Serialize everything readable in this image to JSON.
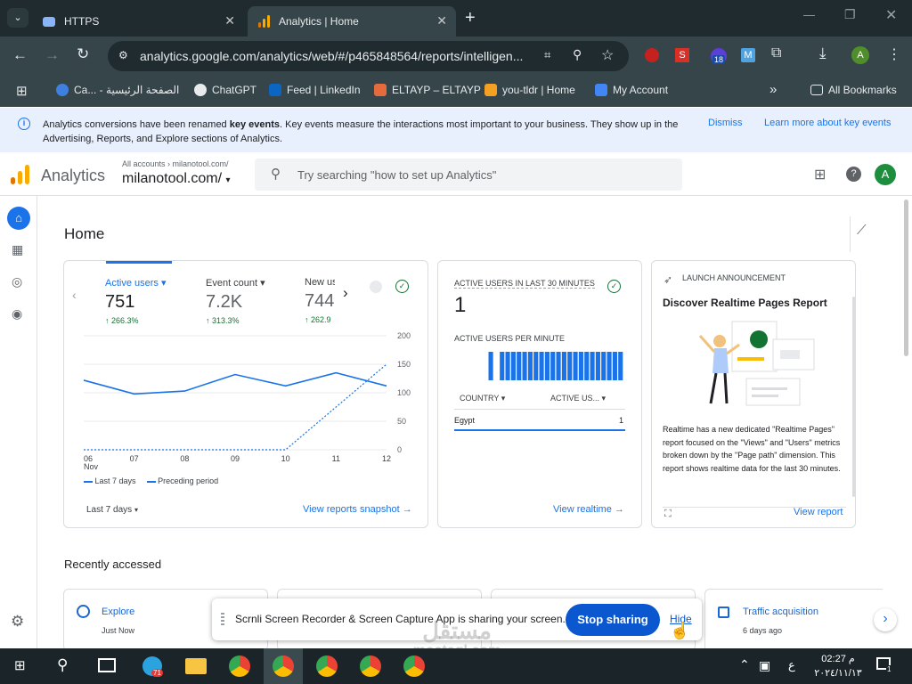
{
  "browser": {
    "tabs": [
      {
        "label": "HTTPS"
      },
      {
        "label": "Analytics | Home"
      }
    ],
    "url": "analytics.google.com/analytics/web/#/p465848564/reports/intelligen...",
    "bookmarks": [
      {
        "label": "Ca... - الصفحة الرئيسية"
      },
      {
        "label": "ChatGPT"
      },
      {
        "label": "Feed | LinkedIn"
      },
      {
        "label": "ELTAYP – ELTAYP"
      },
      {
        "label": "you-tldr | Home"
      },
      {
        "label": "My Account"
      }
    ],
    "all_bookmarks": "All Bookmarks",
    "ext_badge": "18",
    "avatar": "A"
  },
  "banner": {
    "text_before": "Analytics conversions have been renamed ",
    "bold": "key events",
    "text_after": ". Key events measure the interactions most important to your business. They show up in the",
    "text_line2": "Advertising, Reports, and Explore sections of Analytics.",
    "dismiss": "Dismiss",
    "learn": "Learn more about key events"
  },
  "ga": {
    "product": "Analytics",
    "breadcrumb": "All accounts",
    "account": "milanotool.com/",
    "property": "milanotool.com/",
    "search_placeholder": "Try searching \"how to set up Analytics\"",
    "avatar": "A",
    "page_title": "Home"
  },
  "overview": {
    "metrics": [
      {
        "label": "Active users",
        "value": "751",
        "change": "266.3%"
      },
      {
        "label": "Event count",
        "value": "7.2K",
        "change": "313.3%"
      },
      {
        "label": "New us",
        "value": "744",
        "change": "262.9"
      }
    ],
    "legend_current": "Last 7 days",
    "legend_previous": "Preceding period",
    "date_range": "Last 7 days",
    "link": "View reports snapshot"
  },
  "chart_data": {
    "type": "line",
    "x": [
      "06",
      "07",
      "08",
      "09",
      "10",
      "11",
      "12"
    ],
    "x_sublabel": "Nov",
    "y_ticks": [
      0,
      50,
      100,
      150,
      200
    ],
    "ylim": [
      0,
      200
    ],
    "grid": true,
    "legend_placement": "bottom-left",
    "series": [
      {
        "name": "Last 7 days",
        "values": [
          122,
          98,
          103,
          132,
          112,
          135,
          112
        ],
        "color": "#1a73e8",
        "style": "solid"
      },
      {
        "name": "Preceding period",
        "values": [
          0,
          0,
          0,
          0,
          0,
          75,
          150
        ],
        "color": "#1a73e8",
        "style": "dashed"
      }
    ]
  },
  "realtime": {
    "title": "ACTIVE USERS IN LAST 30 MINUTES",
    "value": "1",
    "per_minute_title": "ACTIVE USERS PER MINUTE",
    "per_minute_bars": [
      0,
      0,
      0,
      0,
      0,
      0,
      1,
      0,
      1,
      1,
      1,
      1,
      1,
      1,
      1,
      1,
      1,
      1,
      1,
      1,
      1,
      1,
      1,
      1,
      1,
      1,
      1,
      1,
      1,
      1
    ],
    "col_country": "COUNTRY",
    "col_users": "ACTIVE US...",
    "rows": [
      {
        "country": "Egypt",
        "users": "1"
      }
    ],
    "link": "View realtime"
  },
  "announcement": {
    "eyebrow": "LAUNCH ANNOUNCEMENT",
    "title": "Discover Realtime Pages Report",
    "body": "Realtime has a new dedicated \"Realtime Pages\" report focused on the \"Views\" and \"Users\" metrics broken down by the \"Page path\" dimension. This report shows realtime data for the last 30 minutes.",
    "link": "View report"
  },
  "recent": {
    "title": "Recently accessed",
    "items": [
      {
        "label": "Explore",
        "sub": "Just Now"
      },
      {
        "label": "Traffic acquisition",
        "sub": "6 days ago"
      }
    ]
  },
  "share_bar": {
    "text": "Scrnli Screen Recorder & Screen Capture App is sharing your screen.",
    "stop": "Stop sharing",
    "hide": "Hide"
  },
  "taskbar": {
    "telegram_badge": "71",
    "lang": "ع",
    "time": "02:27 م",
    "date": "٢٠٢٤/١١/١٣",
    "notif_count": "1"
  },
  "watermark": {
    "text": "mostaql.com",
    "logo": "مستقل"
  }
}
